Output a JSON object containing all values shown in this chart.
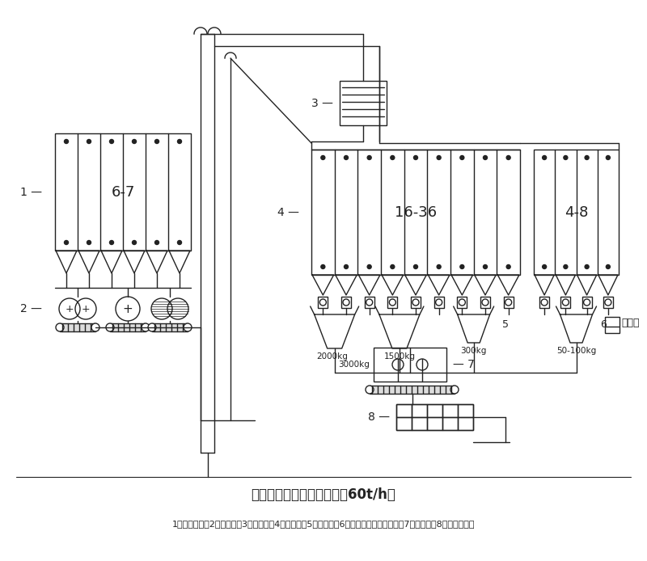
{
  "title": "先粉碎后配料再混合工艺（60t/h）",
  "caption": "1、待粉碎仓；2、粉碎机；3、分级筛；4、配料仓；5、配料秤；6、小秤及添加剂配料秤；7、混合机；8、糖蜜混合机",
  "bg_color": "#ffffff",
  "lc": "#222222",
  "lw": 1.0,
  "silo1_label": "6-7",
  "silo2_label": "16-36",
  "silo3_label": "4-8",
  "w1": "2000kg",
  "w2": "1500kg",
  "w3": "300kg",
  "w4": "50-100kg",
  "w5": "3000kg",
  "manual_feed": "手加料"
}
